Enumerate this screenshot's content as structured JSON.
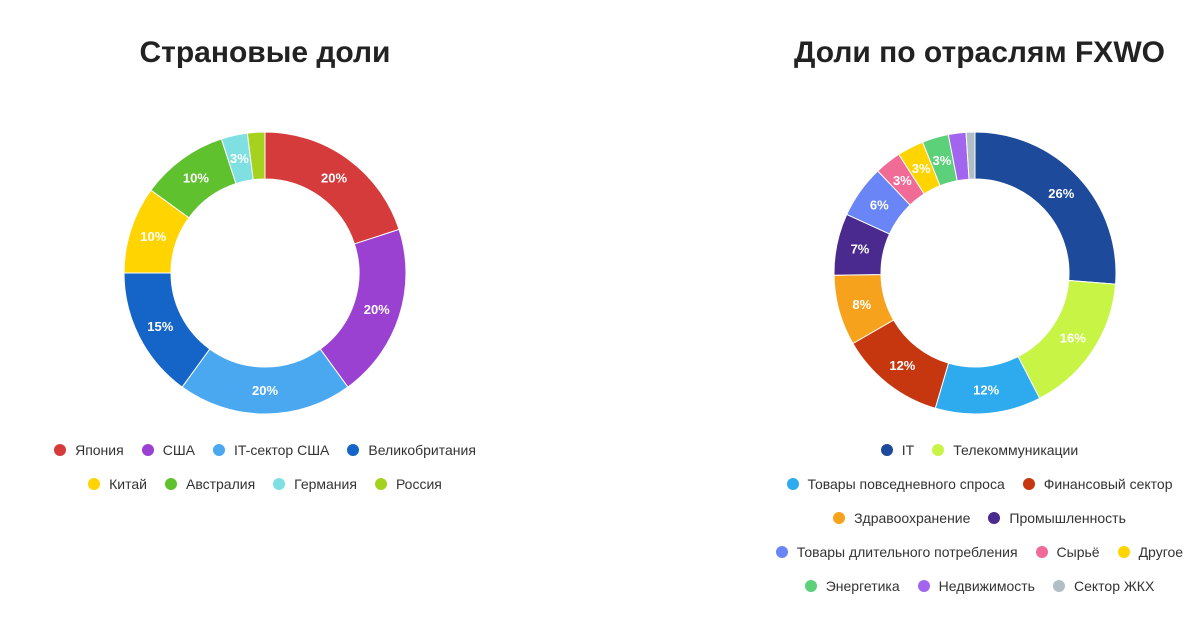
{
  "chart_data": [
    {
      "type": "pie",
      "title": "Страновые доли",
      "categories": [
        "Япония",
        "США",
        "IT-сектор США",
        "Великобритания",
        "Китай",
        "Австралия",
        "Германия",
        "Россия"
      ],
      "values": [
        20,
        20,
        20,
        15,
        10,
        10,
        3,
        2
      ],
      "data_labels": [
        "20%",
        "20%",
        "20%",
        "15%",
        "10%",
        "10%",
        "3%",
        ""
      ],
      "colors": [
        "#d63b3b",
        "#9b41d2",
        "#4aa8f0",
        "#1565c8",
        "#ffd400",
        "#5fc12d",
        "#7ee0e0",
        "#a5d21e"
      ],
      "legend_rows": [
        [
          0,
          1,
          2,
          3
        ],
        [
          4,
          5,
          6,
          7
        ]
      ],
      "legend_position": "bottom"
    },
    {
      "type": "pie",
      "title": "Доли по отраслям FXWO",
      "categories": [
        "IT",
        "Телекоммуникации",
        "Товары повседневного спроса",
        "Финансовый сектор",
        "Здравоохранение",
        "Промышленность",
        "Товары длительного потребления",
        "Сырьё",
        "Другое",
        "Энергетика",
        "Недвижимость",
        "Сектор ЖКХ"
      ],
      "values": [
        26,
        16,
        12,
        12,
        8,
        7,
        6,
        3,
        3,
        3,
        2,
        1
      ],
      "data_labels": [
        "26%",
        "16%",
        "12%",
        "12%",
        "8%",
        "7%",
        "6%",
        "3%",
        "3%",
        "3%",
        "",
        ""
      ],
      "colors": [
        "#1e4a9c",
        "#c8f545",
        "#2eaaee",
        "#c6360f",
        "#f7a21c",
        "#4a2a8e",
        "#6a85f5",
        "#f06b96",
        "#ffd400",
        "#5cd17a",
        "#a266ee",
        "#b0bec5"
      ],
      "legend_rows": [
        [
          0,
          1
        ],
        [
          2,
          3
        ],
        [
          4,
          5
        ],
        [
          6,
          7,
          8
        ],
        [
          9,
          10,
          11
        ]
      ],
      "legend_position": "bottom"
    }
  ]
}
